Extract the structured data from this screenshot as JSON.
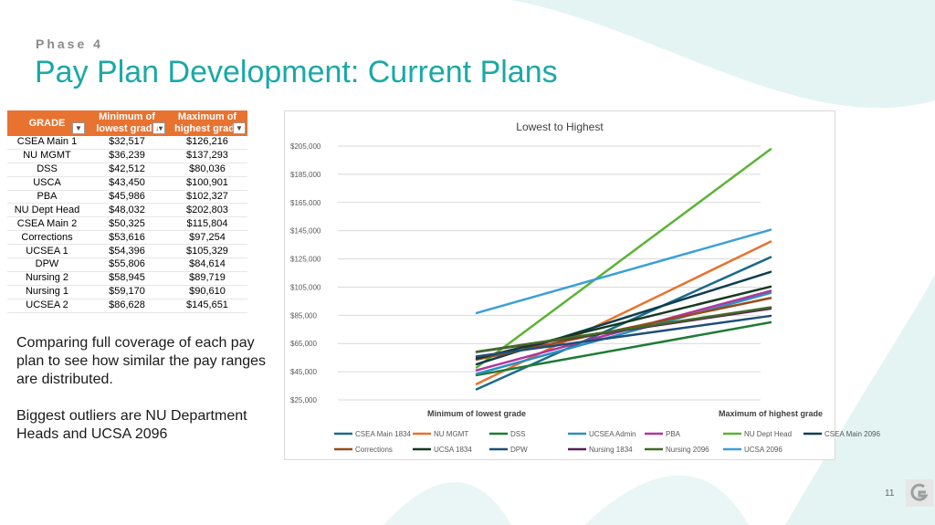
{
  "header": {
    "phase": "Phase 4",
    "title": "Pay Plan Development: Current Plans"
  },
  "table": {
    "headers": [
      "GRADE",
      "Minimum of lowest grade",
      "Maximum of highest grade"
    ],
    "rows": [
      [
        "CSEA Main 1",
        "$32,517",
        "$126,216"
      ],
      [
        "NU MGMT",
        "$36,239",
        "$137,293"
      ],
      [
        "DSS",
        "$42,512",
        "$80,036"
      ],
      [
        "USCA",
        "$43,450",
        "$100,901"
      ],
      [
        "PBA",
        "$45,986",
        "$102,327"
      ],
      [
        "NU Dept Head",
        "$48,032",
        "$202,803"
      ],
      [
        "CSEA Main 2",
        "$50,325",
        "$115,804"
      ],
      [
        "Corrections",
        "$53,616",
        "$97,254"
      ],
      [
        "UCSEA 1",
        "$54,396",
        "$105,329"
      ],
      [
        "DPW",
        "$55,806",
        "$84,614"
      ],
      [
        "Nursing 2",
        "$58,945",
        "$89,719"
      ],
      [
        "Nursing 1",
        "$59,170",
        "$90,610"
      ],
      [
        "UCSEA 2",
        "$86,628",
        "$145,651"
      ]
    ]
  },
  "description": [
    "Comparing full coverage of each pay plan to see how similar the pay ranges are distributed.",
    "Biggest outliers are NU Department Heads and UCSA 2096"
  ],
  "page_number": "11",
  "chart_data": {
    "type": "line",
    "title": "Lowest to Highest",
    "categories": [
      "Minimum of lowest grade",
      "Maximum of highest grade"
    ],
    "ylim": [
      25000,
      205000
    ],
    "yticks": [
      "$25,000",
      "$45,000",
      "$65,000",
      "$85,000",
      "$105,000",
      "$125,000",
      "$145,000",
      "$165,000",
      "$185,000",
      "$205,000"
    ],
    "grid": true,
    "legend_position": "bottom",
    "series": [
      {
        "name": "CSEA Main 1834",
        "color": "#1b6b8a",
        "values": [
          32517,
          126216
        ]
      },
      {
        "name": "NU MGMT",
        "color": "#e8722f",
        "values": [
          36239,
          137293
        ]
      },
      {
        "name": "DSS",
        "color": "#1e7b34",
        "values": [
          42512,
          80036
        ]
      },
      {
        "name": "UCSEA Admin",
        "color": "#2a90c0",
        "values": [
          43450,
          100901
        ]
      },
      {
        "name": "PBA",
        "color": "#b0369b",
        "values": [
          45986,
          102327
        ]
      },
      {
        "name": "NU Dept Head",
        "color": "#5cb335",
        "values": [
          48032,
          202803
        ]
      },
      {
        "name": "CSEA Main 2096",
        "color": "#0f3d50",
        "values": [
          50325,
          115804
        ]
      },
      {
        "name": "Corrections",
        "color": "#9a4a18",
        "values": [
          53616,
          97254
        ]
      },
      {
        "name": "UCSA 1834",
        "color": "#14391f",
        "values": [
          54396,
          105329
        ]
      },
      {
        "name": "DPW",
        "color": "#1f4e79",
        "values": [
          55806,
          84614
        ]
      },
      {
        "name": "Nursing 1834",
        "color": "#5a1e52",
        "values": [
          58945,
          89719
        ]
      },
      {
        "name": "Nursing 2096",
        "color": "#3f6b27",
        "values": [
          59170,
          90610
        ]
      },
      {
        "name": "UCSA 2096",
        "color": "#3aa0d8",
        "values": [
          86628,
          145651
        ]
      }
    ]
  }
}
